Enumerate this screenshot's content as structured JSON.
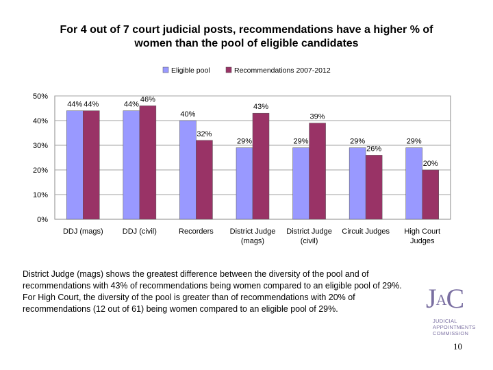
{
  "slide": {
    "title_line1": "For 4 out of 7 court judicial posts, recommendations have a higher % of",
    "title_line2": "women than the pool of eligible candidates",
    "caption": "District Judge (mags) shows the greatest difference between the diversity of the pool and of recommendations with 43% of recommendations being women compared to an eligible pool of 29%. For High Court, the diversity of the pool is greater than of recommendations with 20% of recommendations (12 out of 61) being women compared to an eligible pool of 29%.",
    "logo_mark": "JAC",
    "logo_line1": "JUDICIAL",
    "logo_line2": "APPOINTMENTS",
    "logo_line3": "COMMISSION",
    "page_number": "10"
  },
  "chart_data": {
    "type": "bar",
    "categories": [
      [
        "DDJ (mags)"
      ],
      [
        "DDJ (civil)"
      ],
      [
        "Recorders"
      ],
      [
        "District Judge",
        "(mags)"
      ],
      [
        "District Judge",
        "(civil)"
      ],
      [
        "Circuit Judges"
      ],
      [
        "High Court",
        "Judges"
      ]
    ],
    "series": [
      {
        "name": "Eligible pool",
        "color": "#9999ff",
        "values": [
          44,
          44,
          40,
          29,
          29,
          29,
          29
        ]
      },
      {
        "name": "Recommendations 2007-2012",
        "color": "#993366",
        "values": [
          44,
          46,
          32,
          43,
          39,
          26,
          20
        ]
      }
    ],
    "ylim": [
      0,
      50
    ],
    "yticks": [
      0,
      10,
      20,
      30,
      40,
      50
    ],
    "ytick_suffix": "%",
    "grid": true,
    "legend": "top"
  }
}
